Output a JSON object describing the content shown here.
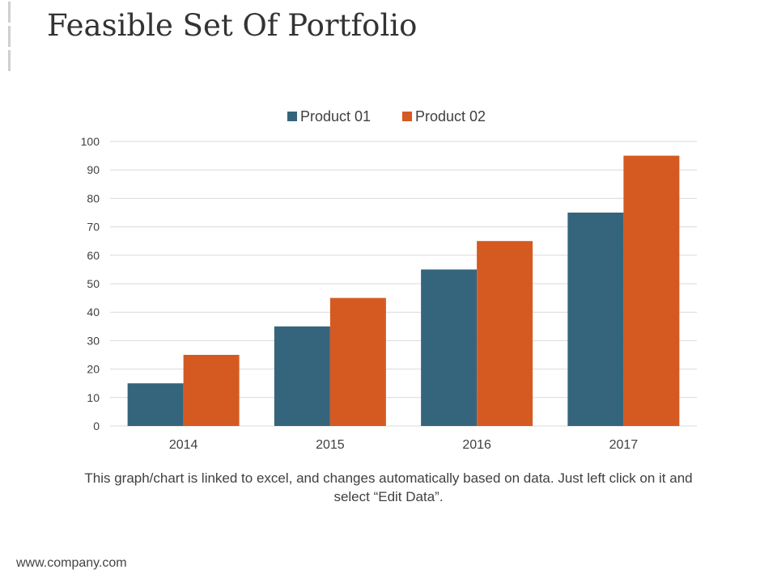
{
  "slide": {
    "title": "Feasible Set Of Portfolio",
    "caption": "This graph/chart is linked to excel, and changes automatically based on data. Just left click on it and select “Edit Data”.",
    "footer": "www.company.com"
  },
  "colors": {
    "product01": "#35657c",
    "product02": "#d55a21",
    "grid": "#d9d9d9",
    "text": "#404040"
  },
  "chart_data": {
    "type": "bar",
    "title": "",
    "xlabel": "",
    "ylabel": "",
    "categories": [
      "2014",
      "2015",
      "2016",
      "2017"
    ],
    "series": [
      {
        "name": "Product 01",
        "values": [
          15,
          35,
          55,
          75
        ]
      },
      {
        "name": "Product 02",
        "values": [
          25,
          45,
          65,
          95
        ]
      }
    ],
    "ylim": [
      0,
      100
    ],
    "yticks": [
      0,
      10,
      20,
      30,
      40,
      50,
      60,
      70,
      80,
      90,
      100
    ],
    "grid": true,
    "legend": "top-center"
  }
}
